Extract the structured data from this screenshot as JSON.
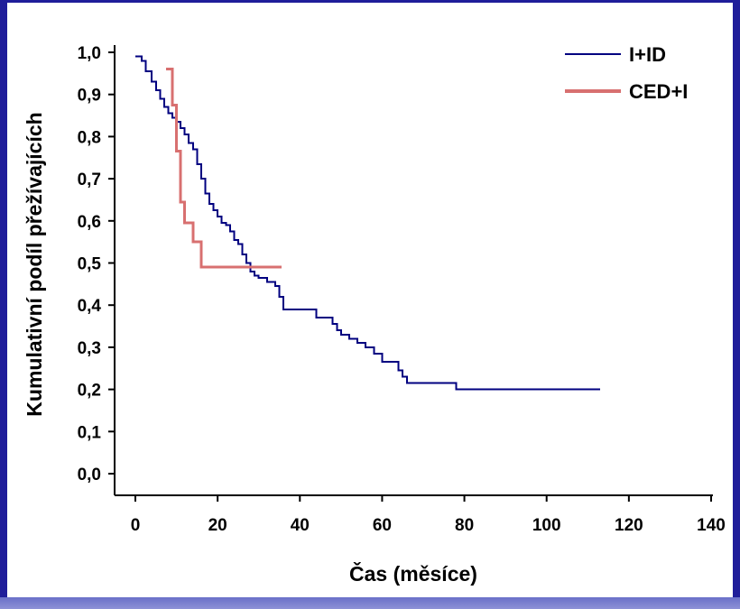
{
  "chart_data": {
    "type": "line",
    "step": true,
    "xlabel": "Čas (měsíce)",
    "ylabel": "Kumulativní podíl přežívajících",
    "xlim": [
      0,
      140
    ],
    "ylim": [
      0,
      1.0
    ],
    "x_ticks": [
      "0",
      "20",
      "40",
      "60",
      "80",
      "100",
      "120",
      "140"
    ],
    "y_ticks": [
      "0,0",
      "0,1",
      "0,2",
      "0,3",
      "0,4",
      "0,5",
      "0,6",
      "0,7",
      "0,8",
      "0,9",
      "1,0"
    ],
    "grid": false,
    "legend_position": "top-right",
    "series": [
      {
        "name": "I+ID",
        "color": "#000080",
        "line_style": "solid",
        "x": [
          0,
          1.5,
          2.5,
          4,
          5,
          6,
          7,
          8,
          9,
          10,
          11,
          12,
          13,
          14,
          15,
          16,
          17,
          18,
          19,
          20,
          21,
          22,
          23,
          24,
          25,
          26,
          27,
          28,
          29,
          30,
          32,
          34,
          35,
          36,
          38,
          44,
          48,
          49,
          50,
          52,
          54,
          56,
          58,
          60,
          64,
          65,
          66,
          78,
          113
        ],
        "y": [
          0.99,
          0.98,
          0.955,
          0.93,
          0.91,
          0.89,
          0.87,
          0.855,
          0.845,
          0.835,
          0.82,
          0.805,
          0.785,
          0.77,
          0.735,
          0.7,
          0.665,
          0.64,
          0.625,
          0.61,
          0.595,
          0.59,
          0.575,
          0.555,
          0.545,
          0.52,
          0.5,
          0.48,
          0.47,
          0.465,
          0.455,
          0.445,
          0.42,
          0.39,
          0.39,
          0.37,
          0.355,
          0.34,
          0.33,
          0.32,
          0.31,
          0.3,
          0.285,
          0.265,
          0.245,
          0.23,
          0.215,
          0.2,
          0.2
        ]
      },
      {
        "name": "CED+I",
        "color": "#d87070",
        "line_style": "solid",
        "x": [
          7.5,
          9,
          10,
          11,
          12,
          14,
          16,
          35.5
        ],
        "y": [
          0.96,
          0.875,
          0.765,
          0.645,
          0.595,
          0.55,
          0.49,
          0.49
        ]
      }
    ]
  }
}
